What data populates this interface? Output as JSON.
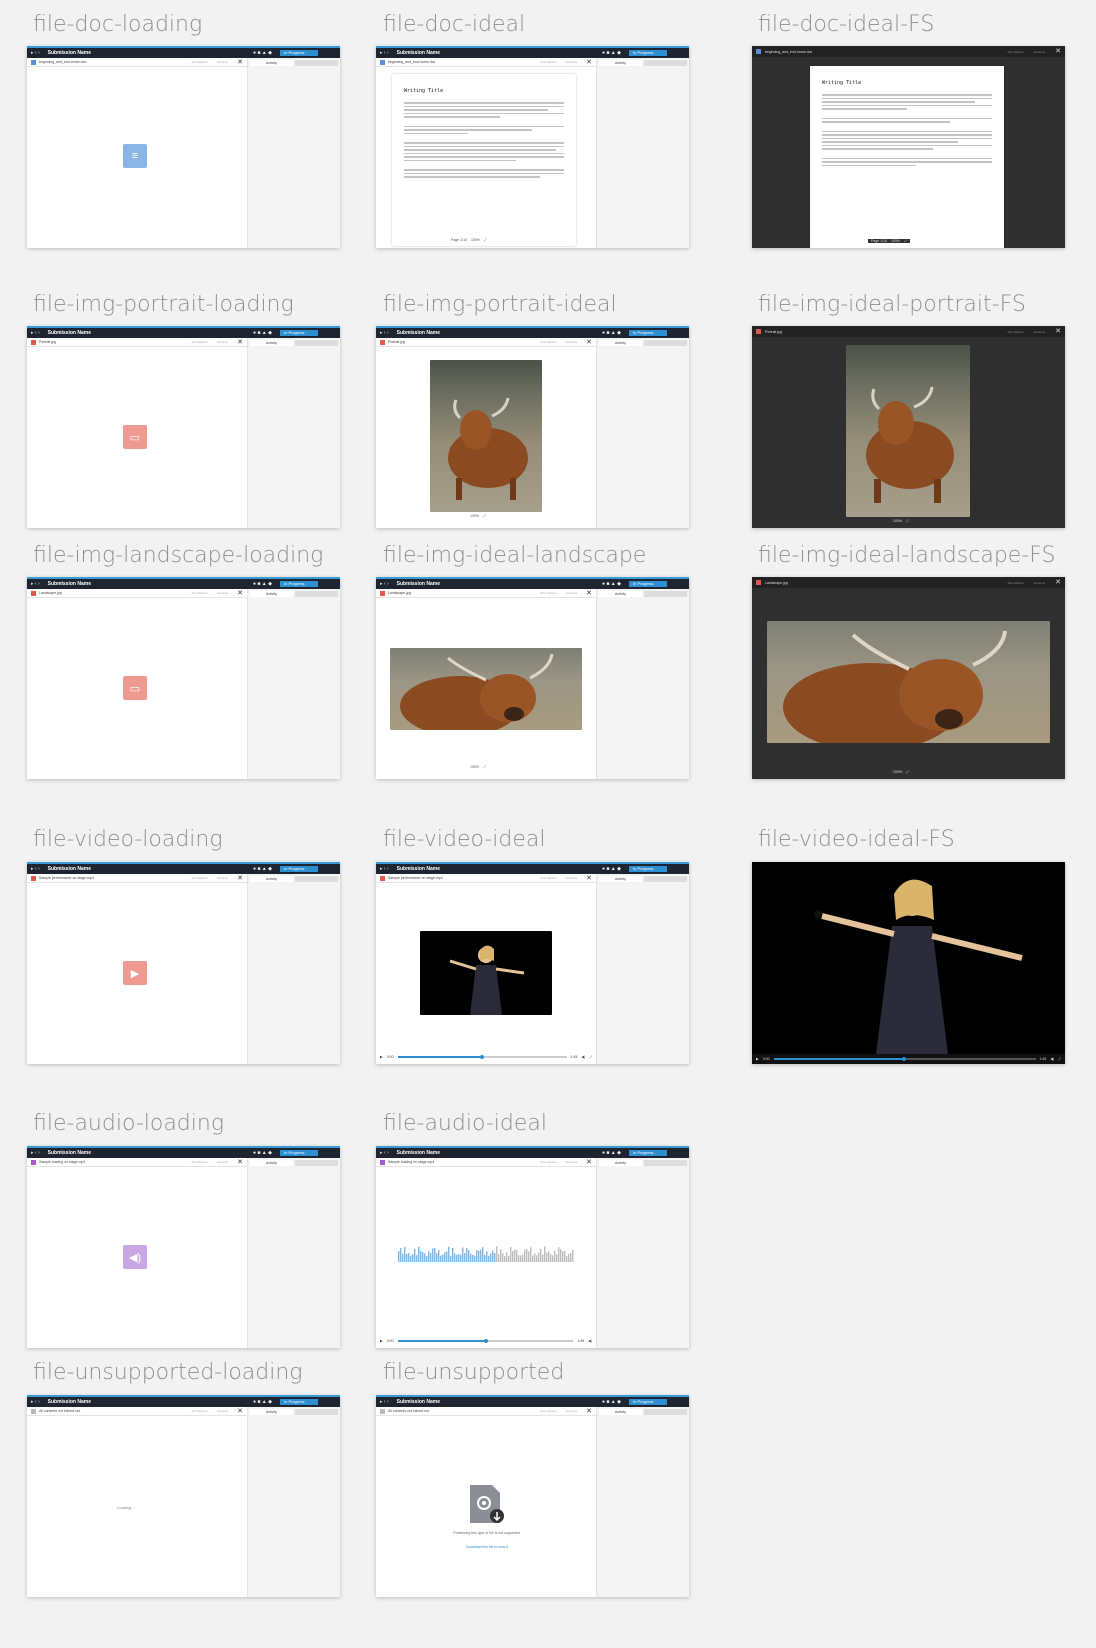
{
  "labels": {
    "doc_loading": "file-doc-loading",
    "doc_ideal": "file-doc-ideal",
    "doc_ideal_fs": "file-doc-ideal-FS",
    "img_portrait_loading": "file-img-portrait-loading",
    "img_portrait_ideal": "file-img-portrait-ideal",
    "img_portrait_fs": "file-img-ideal-portrait-FS",
    "img_landscape_loading": "file-img-landscape-loading",
    "img_landscape_ideal": "file-img-ideal-landscape",
    "img_landscape_fs": "file-img-ideal-landscape-FS",
    "video_loading": "file-video-loading",
    "video_ideal": "file-video-ideal",
    "video_fs": "file-video-ideal-FS",
    "audio_loading": "file-audio-loading",
    "audio_ideal": "file-audio-ideal",
    "unsupported_loading": "file-unsupported-loading",
    "unsupported": "file-unsupported"
  },
  "window": {
    "submission_name": "Submission Name",
    "status": "In Progress",
    "file_options": "File Options",
    "versions": "Versions",
    "activity_tab": "Activity",
    "close_glyph": "✕"
  },
  "files": {
    "doc": "beginning_and_end-horse.doc",
    "portrait": "Portrait.jpg",
    "landscape": "Landscape.jpg",
    "video": "Sample performance on stage.mp4",
    "audio": "Sample loading on stage.mp4",
    "unsupported": "All contents not inlined.xxx"
  },
  "doc": {
    "title": "Writing Title",
    "page": "Page 1/10",
    "zoom": "100%"
  },
  "image": {
    "zoom": "100%"
  },
  "player": {
    "current": "0:00",
    "duration": "1:45"
  },
  "loading_text": "Loading...",
  "unsupported": {
    "message": "Previewing this type of file is not supported.",
    "download": "Download this file to view it"
  },
  "colors": {
    "doc": "#8ab6e6",
    "image": "#ef9a90",
    "video": "#ef9a90",
    "audio": "#c9a6e4",
    "accent": "#2d8fd1"
  }
}
